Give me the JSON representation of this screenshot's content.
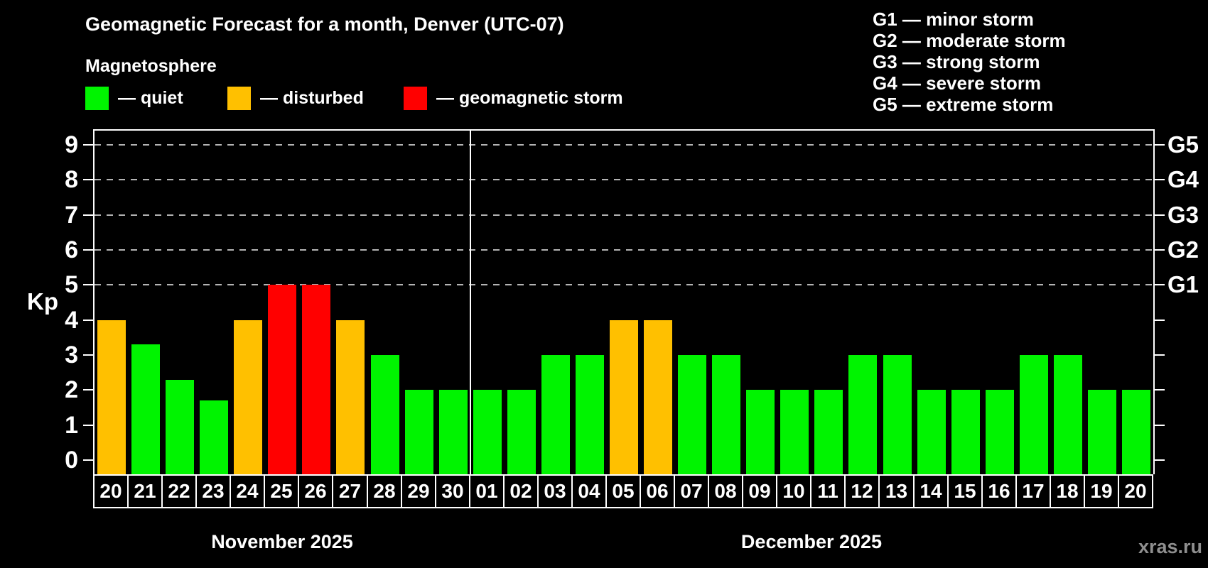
{
  "header": {
    "title": "Geomagnetic Forecast for a month, Denver (UTC-07)",
    "legend_title": "Magnetosphere"
  },
  "legend": {
    "items": [
      {
        "label": "— quiet",
        "status": "quiet",
        "color": "#00f400"
      },
      {
        "label": "— disturbed",
        "status": "disturbed",
        "color": "#ffc000"
      },
      {
        "label": "— geomagnetic storm",
        "status": "storm",
        "color": "#ff0000"
      }
    ]
  },
  "g_scale_legend": {
    "items": [
      "G1 — minor storm",
      "G2 — moderate storm",
      "G3 — strong storm",
      "G4 — severe storm",
      "G5 — extreme storm"
    ]
  },
  "colors": {
    "quiet": "#00f400",
    "disturbed": "#ffc000",
    "storm": "#ff0000",
    "background": "#000000",
    "axis": "#ffffff",
    "gridline": "#b4b4b4",
    "watermark": "#8f8f8f"
  },
  "chart_data": {
    "type": "bar",
    "ylabel": "Kp",
    "ylim": [
      -0.4,
      9.4
    ],
    "y_ticks": [
      0,
      1,
      2,
      3,
      4,
      5,
      6,
      7,
      8,
      9
    ],
    "gridlines_at": [
      5,
      6,
      7,
      8,
      9
    ],
    "grid": "dashed horizontal at G-storm levels only",
    "legend_position": "top",
    "right_axis_labels": [
      {
        "label": "G1",
        "kp": 5
      },
      {
        "label": "G2",
        "kp": 6
      },
      {
        "label": "G3",
        "kp": 7
      },
      {
        "label": "G4",
        "kp": 8
      },
      {
        "label": "G5",
        "kp": 9
      }
    ],
    "months": [
      {
        "label": "November 2025",
        "days": 11
      },
      {
        "label": "December 2025",
        "days": 20
      }
    ],
    "bars": [
      {
        "day": "20",
        "kp": 4.0,
        "status": "disturbed"
      },
      {
        "day": "21",
        "kp": 3.3,
        "status": "quiet"
      },
      {
        "day": "22",
        "kp": 2.3,
        "status": "quiet"
      },
      {
        "day": "23",
        "kp": 1.7,
        "status": "quiet"
      },
      {
        "day": "24",
        "kp": 4.0,
        "status": "disturbed"
      },
      {
        "day": "25",
        "kp": 5.0,
        "status": "storm"
      },
      {
        "day": "26",
        "kp": 5.0,
        "status": "storm"
      },
      {
        "day": "27",
        "kp": 4.0,
        "status": "disturbed"
      },
      {
        "day": "28",
        "kp": 3.0,
        "status": "quiet"
      },
      {
        "day": "29",
        "kp": 2.0,
        "status": "quiet"
      },
      {
        "day": "30",
        "kp": 2.0,
        "status": "quiet"
      },
      {
        "day": "01",
        "kp": 2.0,
        "status": "quiet"
      },
      {
        "day": "02",
        "kp": 2.0,
        "status": "quiet"
      },
      {
        "day": "03",
        "kp": 3.0,
        "status": "quiet"
      },
      {
        "day": "04",
        "kp": 3.0,
        "status": "quiet"
      },
      {
        "day": "05",
        "kp": 4.0,
        "status": "disturbed"
      },
      {
        "day": "06",
        "kp": 4.0,
        "status": "disturbed"
      },
      {
        "day": "07",
        "kp": 3.0,
        "status": "quiet"
      },
      {
        "day": "08",
        "kp": 3.0,
        "status": "quiet"
      },
      {
        "day": "09",
        "kp": 2.0,
        "status": "quiet"
      },
      {
        "day": "10",
        "kp": 2.0,
        "status": "quiet"
      },
      {
        "day": "11",
        "kp": 2.0,
        "status": "quiet"
      },
      {
        "day": "12",
        "kp": 3.0,
        "status": "quiet"
      },
      {
        "day": "13",
        "kp": 3.0,
        "status": "quiet"
      },
      {
        "day": "14",
        "kp": 2.0,
        "status": "quiet"
      },
      {
        "day": "15",
        "kp": 2.0,
        "status": "quiet"
      },
      {
        "day": "16",
        "kp": 2.0,
        "status": "quiet"
      },
      {
        "day": "17",
        "kp": 3.0,
        "status": "quiet"
      },
      {
        "day": "18",
        "kp": 3.0,
        "status": "quiet"
      },
      {
        "day": "19",
        "kp": 2.0,
        "status": "quiet"
      },
      {
        "day": "20",
        "kp": 2.0,
        "status": "quiet"
      }
    ]
  },
  "watermark": "xras.ru"
}
